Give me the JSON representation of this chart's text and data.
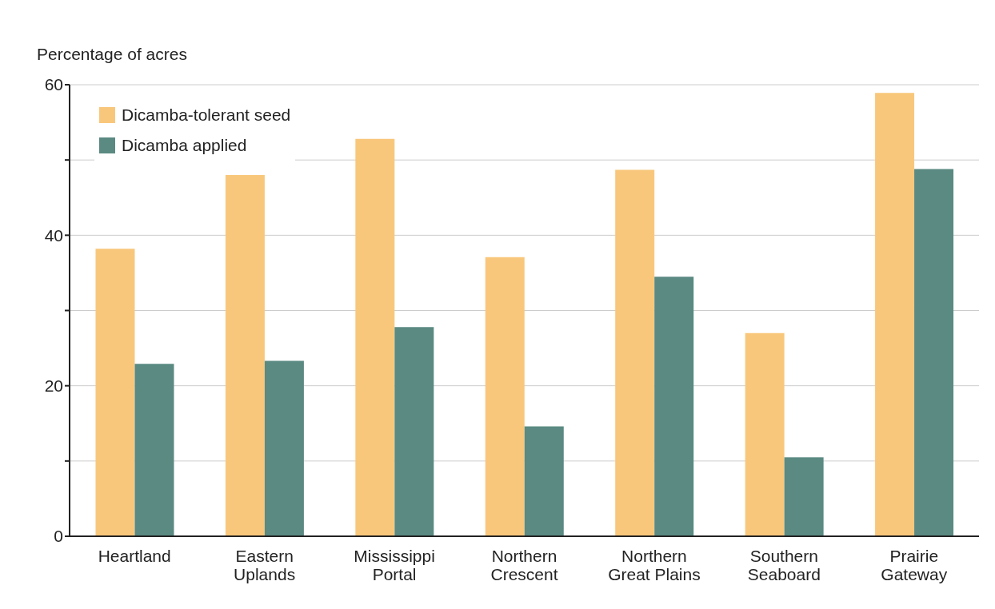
{
  "chart_data": {
    "type": "bar",
    "ylabel": "Percentage of acres",
    "categories": [
      "Heartland",
      "Eastern Uplands",
      "Mississippi Portal",
      "Northern Crescent",
      "Northern Great Plains",
      "Southern Seaboard",
      "Prairie Gateway"
    ],
    "series": [
      {
        "name": "Dicamba-tolerant seed",
        "color": "#f9c77b",
        "values": [
          38.2,
          48,
          52.8,
          37.1,
          48.7,
          27,
          58.9
        ]
      },
      {
        "name": "Dicamba applied",
        "color": "#5a8a82",
        "values": [
          22.9,
          23.3,
          27.8,
          14.6,
          34.5,
          10.5,
          48.8
        ]
      }
    ],
    "ylim": [
      0,
      60
    ],
    "yticks": [
      0,
      {
        "value": 10,
        "label": null
      },
      20,
      {
        "value": 30,
        "label": null
      },
      40,
      {
        "value": 50,
        "label": null
      },
      60
    ],
    "grid": "y",
    "legend": "top left"
  }
}
